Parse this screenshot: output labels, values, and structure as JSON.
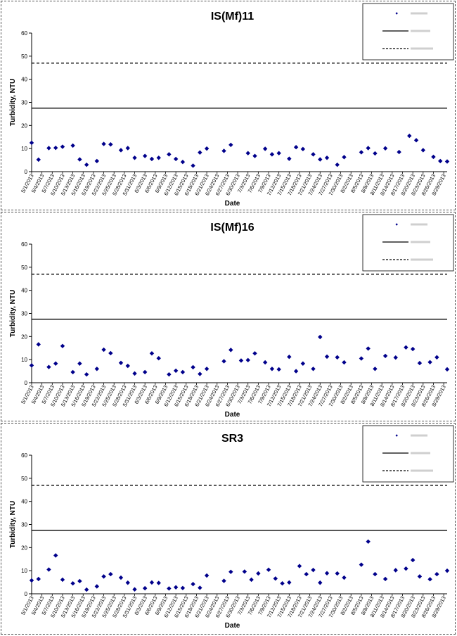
{
  "chart_data": [
    {
      "type": "scatter",
      "title": "IS(Mf)11",
      "xlabel": "Date",
      "ylabel": "Turbidity, NTU",
      "ylim": [
        0,
        60
      ],
      "yticks": [
        0,
        10,
        20,
        30,
        40,
        50,
        60
      ],
      "x_tick_labels": [
        "5/1/2013",
        "5/4/2013",
        "5/7/2013",
        "5/10/2013",
        "5/13/2013",
        "5/16/2013",
        "5/19/2013",
        "5/22/2013",
        "5/25/2013",
        "5/28/2013",
        "5/31/2013",
        "6/3/2013",
        "6/6/2013",
        "6/9/2013",
        "6/12/2013",
        "6/15/2013",
        "6/18/2013",
        "6/21/2013",
        "6/24/2013",
        "6/27/2013",
        "6/30/2013",
        "7/3/2013",
        "7/6/2013",
        "7/9/2013",
        "7/12/2013",
        "7/15/2013",
        "7/18/2013",
        "7/21/2013",
        "7/24/2013",
        "7/27/2013",
        "7/30/2013",
        "8/2/2013",
        "8/5/2013",
        "8/8/2013",
        "8/11/2013",
        "8/14/2013",
        "8/17/2013",
        "8/20/2013",
        "8/23/2013",
        "8/26/2013",
        "8/29/2013"
      ],
      "points": [
        {
          "date": "5/1/2013",
          "value": 12.5
        },
        {
          "date": "5/3/2013",
          "value": 5.2
        },
        {
          "date": "5/6/2013",
          "value": 10.2
        },
        {
          "date": "5/8/2013",
          "value": 10.3
        },
        {
          "date": "5/10/2013",
          "value": 10.8
        },
        {
          "date": "5/13/2013",
          "value": 11.3
        },
        {
          "date": "5/15/2013",
          "value": 5.3
        },
        {
          "date": "5/17/2013",
          "value": 3.0
        },
        {
          "date": "5/20/2013",
          "value": 4.6
        },
        {
          "date": "5/22/2013",
          "value": 12.0
        },
        {
          "date": "5/24/2013",
          "value": 11.8
        },
        {
          "date": "5/27/2013",
          "value": 9.3
        },
        {
          "date": "5/29/2013",
          "value": 10.2
        },
        {
          "date": "5/31/2013",
          "value": 6.0
        },
        {
          "date": "6/3/2013",
          "value": 6.8
        },
        {
          "date": "6/5/2013",
          "value": 5.5
        },
        {
          "date": "6/7/2013",
          "value": 6.0
        },
        {
          "date": "6/10/2013",
          "value": 7.5
        },
        {
          "date": "6/12/2013",
          "value": 5.5
        },
        {
          "date": "6/14/2013",
          "value": 4.2
        },
        {
          "date": "6/17/2013",
          "value": 2.6
        },
        {
          "date": "6/19/2013",
          "value": 8.3
        },
        {
          "date": "6/21/2013",
          "value": 10.0
        },
        {
          "date": "6/26/2013",
          "value": 9.0
        },
        {
          "date": "6/28/2013",
          "value": 11.6
        },
        {
          "date": "7/3/2013",
          "value": 8.0
        },
        {
          "date": "7/5/2013",
          "value": 6.8
        },
        {
          "date": "7/8/2013",
          "value": 9.9
        },
        {
          "date": "7/10/2013",
          "value": 7.5
        },
        {
          "date": "7/12/2013",
          "value": 8.0
        },
        {
          "date": "7/15/2013",
          "value": 5.6
        },
        {
          "date": "7/17/2013",
          "value": 10.6
        },
        {
          "date": "7/19/2013",
          "value": 9.8
        },
        {
          "date": "7/22/2013",
          "value": 7.5
        },
        {
          "date": "7/24/2013",
          "value": 5.3
        },
        {
          "date": "7/26/2013",
          "value": 6.0
        },
        {
          "date": "7/29/2013",
          "value": 3.0
        },
        {
          "date": "7/31/2013",
          "value": 6.3
        },
        {
          "date": "8/5/2013",
          "value": 8.4
        },
        {
          "date": "8/7/2013",
          "value": 10.2
        },
        {
          "date": "8/9/2013",
          "value": 7.9
        },
        {
          "date": "8/12/2013",
          "value": 10.1
        },
        {
          "date": "8/16/2013",
          "value": 8.5
        },
        {
          "date": "8/19/2013",
          "value": 15.5
        },
        {
          "date": "8/21/2013",
          "value": 13.6
        },
        {
          "date": "8/23/2013",
          "value": 9.3
        },
        {
          "date": "8/26/2013",
          "value": 6.4
        },
        {
          "date": "8/28/2013",
          "value": 4.6
        },
        {
          "date": "8/30/2013",
          "value": 4.4
        }
      ],
      "reference_lines": [
        {
          "style": "solid",
          "value": 27.5
        },
        {
          "style": "dashed",
          "value": 47
        }
      ],
      "colors": {
        "marker": "#00008b",
        "line": "#000000"
      }
    },
    {
      "type": "scatter",
      "title": "IS(Mf)16",
      "xlabel": "Date",
      "ylabel": "Turbidity, NTU",
      "ylim": [
        0,
        60
      ],
      "yticks": [
        0,
        10,
        20,
        30,
        40,
        50,
        60
      ],
      "x_tick_labels": [
        "5/1/2013",
        "5/4/2013",
        "5/7/2013",
        "5/10/2013",
        "5/13/2013",
        "5/16/2013",
        "5/19/2013",
        "5/22/2013",
        "5/25/2013",
        "5/28/2013",
        "5/31/2013",
        "6/3/2013",
        "6/6/2013",
        "6/9/2013",
        "6/12/2013",
        "6/15/2013",
        "6/18/2013",
        "6/21/2013",
        "6/24/2013",
        "6/27/2013",
        "6/30/2013",
        "7/3/2013",
        "7/6/2013",
        "7/9/2013",
        "7/12/2013",
        "7/15/2013",
        "7/18/2013",
        "7/21/2013",
        "7/24/2013",
        "7/27/2013",
        "7/30/2013",
        "8/2/2013",
        "8/5/2013",
        "8/8/2013",
        "8/11/2013",
        "8/14/2013",
        "8/17/2013",
        "8/20/2013",
        "8/23/2013",
        "8/26/2013",
        "8/29/2013"
      ],
      "points": [
        {
          "date": "5/1/2013",
          "value": 7.5
        },
        {
          "date": "5/3/2013",
          "value": 16.6
        },
        {
          "date": "5/6/2013",
          "value": 6.8
        },
        {
          "date": "5/8/2013",
          "value": 8.3
        },
        {
          "date": "5/10/2013",
          "value": 15.9
        },
        {
          "date": "5/13/2013",
          "value": 4.6
        },
        {
          "date": "5/15/2013",
          "value": 8.3
        },
        {
          "date": "5/17/2013",
          "value": 3.6
        },
        {
          "date": "5/20/2013",
          "value": 6.0
        },
        {
          "date": "5/22/2013",
          "value": 14.3
        },
        {
          "date": "5/24/2013",
          "value": 12.8
        },
        {
          "date": "5/27/2013",
          "value": 8.6
        },
        {
          "date": "5/29/2013",
          "value": 7.3
        },
        {
          "date": "5/31/2013",
          "value": 4.0
        },
        {
          "date": "6/3/2013",
          "value": 4.6
        },
        {
          "date": "6/5/2013",
          "value": 12.7
        },
        {
          "date": "6/7/2013",
          "value": 10.6
        },
        {
          "date": "6/10/2013",
          "value": 3.6
        },
        {
          "date": "6/12/2013",
          "value": 5.2
        },
        {
          "date": "6/14/2013",
          "value": 4.6
        },
        {
          "date": "6/17/2013",
          "value": 6.7
        },
        {
          "date": "6/19/2013",
          "value": 3.8
        },
        {
          "date": "6/21/2013",
          "value": 6.0
        },
        {
          "date": "6/26/2013",
          "value": 9.3
        },
        {
          "date": "6/28/2013",
          "value": 14.2
        },
        {
          "date": "7/1/2013",
          "value": 9.6
        },
        {
          "date": "7/3/2013",
          "value": 9.8
        },
        {
          "date": "7/5/2013",
          "value": 12.7
        },
        {
          "date": "7/8/2013",
          "value": 8.8
        },
        {
          "date": "7/10/2013",
          "value": 6.0
        },
        {
          "date": "7/12/2013",
          "value": 5.8
        },
        {
          "date": "7/15/2013",
          "value": 11.2
        },
        {
          "date": "7/17/2013",
          "value": 5.0
        },
        {
          "date": "7/19/2013",
          "value": 8.3
        },
        {
          "date": "7/22/2013",
          "value": 6.0
        },
        {
          "date": "7/24/2013",
          "value": 19.8
        },
        {
          "date": "7/26/2013",
          "value": 11.3
        },
        {
          "date": "7/29/2013",
          "value": 11.0
        },
        {
          "date": "7/31/2013",
          "value": 8.8
        },
        {
          "date": "8/5/2013",
          "value": 10.5
        },
        {
          "date": "8/7/2013",
          "value": 14.8
        },
        {
          "date": "8/9/2013",
          "value": 6.0
        },
        {
          "date": "8/12/2013",
          "value": 11.6
        },
        {
          "date": "8/15/2013",
          "value": 10.9
        },
        {
          "date": "8/18/2013",
          "value": 15.3
        },
        {
          "date": "8/20/2013",
          "value": 14.6
        },
        {
          "date": "8/22/2013",
          "value": 8.5
        },
        {
          "date": "8/25/2013",
          "value": 8.9
        },
        {
          "date": "8/27/2013",
          "value": 11.0
        },
        {
          "date": "8/30/2013",
          "value": 5.8
        }
      ],
      "reference_lines": [
        {
          "style": "solid",
          "value": 27.5
        },
        {
          "style": "dashed",
          "value": 47
        }
      ],
      "colors": {
        "marker": "#00008b",
        "line": "#000000"
      }
    },
    {
      "type": "scatter",
      "title": "SR3",
      "xlabel": "Date",
      "ylabel": "Turbidity, NTU",
      "ylim": [
        0,
        60
      ],
      "yticks": [
        0,
        10,
        20,
        30,
        40,
        50,
        60
      ],
      "x_tick_labels": [
        "5/1/2013",
        "5/4/2013",
        "5/7/2013",
        "5/10/2013",
        "5/13/2013",
        "5/16/2013",
        "5/19/2013",
        "5/22/2013",
        "5/25/2013",
        "5/28/2013",
        "5/31/2013",
        "6/3/2013",
        "6/6/2013",
        "6/9/2013",
        "6/12/2013",
        "6/15/2013",
        "6/18/2013",
        "6/21/2013",
        "6/24/2013",
        "6/27/2013",
        "6/30/2013",
        "7/3/2013",
        "7/6/2013",
        "7/9/2013",
        "7/12/2013",
        "7/15/2013",
        "7/18/2013",
        "7/21/2013",
        "7/24/2013",
        "7/27/2013",
        "7/30/2013",
        "8/2/2013",
        "8/5/2013",
        "8/8/2013",
        "8/11/2013",
        "8/14/2013",
        "8/17/2013",
        "8/20/2013",
        "8/23/2013",
        "8/26/2013",
        "8/29/2013"
      ],
      "points": [
        {
          "date": "5/1/2013",
          "value": 5.8
        },
        {
          "date": "5/3/2013",
          "value": 6.4
        },
        {
          "date": "5/6/2013",
          "value": 10.5
        },
        {
          "date": "5/8/2013",
          "value": 16.6
        },
        {
          "date": "5/10/2013",
          "value": 6.1
        },
        {
          "date": "5/13/2013",
          "value": 4.5
        },
        {
          "date": "5/15/2013",
          "value": 5.5
        },
        {
          "date": "5/17/2013",
          "value": 1.8
        },
        {
          "date": "5/20/2013",
          "value": 3.2
        },
        {
          "date": "5/22/2013",
          "value": 7.5
        },
        {
          "date": "5/24/2013",
          "value": 8.5
        },
        {
          "date": "5/27/2013",
          "value": 7.0
        },
        {
          "date": "5/29/2013",
          "value": 4.8
        },
        {
          "date": "5/31/2013",
          "value": 1.9
        },
        {
          "date": "6/3/2013",
          "value": 2.4
        },
        {
          "date": "6/5/2013",
          "value": 4.9
        },
        {
          "date": "6/7/2013",
          "value": 4.7
        },
        {
          "date": "6/10/2013",
          "value": 2.3
        },
        {
          "date": "6/12/2013",
          "value": 2.8
        },
        {
          "date": "6/14/2013",
          "value": 2.5
        },
        {
          "date": "6/17/2013",
          "value": 4.2
        },
        {
          "date": "6/19/2013",
          "value": 2.6
        },
        {
          "date": "6/21/2013",
          "value": 7.9
        },
        {
          "date": "6/26/2013",
          "value": 5.6
        },
        {
          "date": "6/28/2013",
          "value": 9.5
        },
        {
          "date": "7/2/2013",
          "value": 9.6
        },
        {
          "date": "7/4/2013",
          "value": 6.1
        },
        {
          "date": "7/6/2013",
          "value": 8.8
        },
        {
          "date": "7/9/2013",
          "value": 10.4
        },
        {
          "date": "7/11/2013",
          "value": 6.6
        },
        {
          "date": "7/13/2013",
          "value": 4.5
        },
        {
          "date": "7/15/2013",
          "value": 4.9
        },
        {
          "date": "7/18/2013",
          "value": 12.0
        },
        {
          "date": "7/20/2013",
          "value": 8.5
        },
        {
          "date": "7/22/2013",
          "value": 10.3
        },
        {
          "date": "7/24/2013",
          "value": 4.8
        },
        {
          "date": "7/26/2013",
          "value": 8.9
        },
        {
          "date": "7/29/2013",
          "value": 8.8
        },
        {
          "date": "7/31/2013",
          "value": 7.0
        },
        {
          "date": "8/5/2013",
          "value": 12.6
        },
        {
          "date": "8/7/2013",
          "value": 22.6
        },
        {
          "date": "8/9/2013",
          "value": 8.5
        },
        {
          "date": "8/12/2013",
          "value": 6.4
        },
        {
          "date": "8/15/2013",
          "value": 10.2
        },
        {
          "date": "8/18/2013",
          "value": 10.9
        },
        {
          "date": "8/20/2013",
          "value": 14.6
        },
        {
          "date": "8/22/2013",
          "value": 7.5
        },
        {
          "date": "8/25/2013",
          "value": 6.3
        },
        {
          "date": "8/27/2013",
          "value": 8.5
        },
        {
          "date": "8/30/2013",
          "value": 10.0
        }
      ],
      "reference_lines": [
        {
          "style": "solid",
          "value": 27.5
        },
        {
          "style": "dashed",
          "value": 47
        }
      ],
      "colors": {
        "marker": "#00008b",
        "line": "#000000"
      }
    }
  ]
}
